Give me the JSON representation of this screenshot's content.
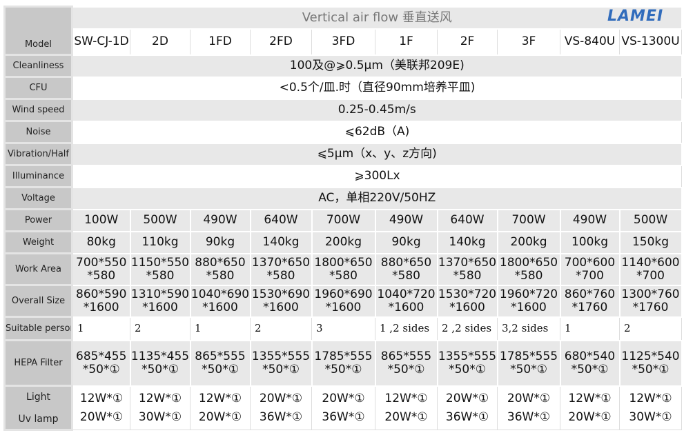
{
  "title": "Vertical air flow 垂直送风",
  "watermark": "LAMEI",
  "model_label": "Model",
  "models": [
    "SW-CJ-1D",
    "2D",
    "1FD",
    "2FD",
    "3FD",
    "1F",
    "2F",
    "3F",
    "VS-840U",
    "VS-1300U"
  ],
  "common": [
    {
      "label": "Cleanliness",
      "value": "100及@⩾0.5μm（美联邦209E)"
    },
    {
      "label": "CFU",
      "value": "<0.5个/皿.时（直径90mm培养平皿)"
    },
    {
      "label": "Wind speed",
      "value": "0.25-0.45m/s"
    },
    {
      "label": "Noise",
      "value": "⩽62dB（A)"
    },
    {
      "label": "Vibration/Half",
      "value": "⩽5μm（x、y、z方向)"
    },
    {
      "label": "Illuminance",
      "value": "⩾300Lx"
    },
    {
      "label": "Voltage",
      "value": "AC，单相220V/50HZ"
    }
  ],
  "power": {
    "label": "Power",
    "values": [
      "100W",
      "500W",
      "490W",
      "640W",
      "700W",
      "490W",
      "640W",
      "700W",
      "490W",
      "500W"
    ]
  },
  "weight": {
    "label": "Weight",
    "values": [
      "80kg",
      "110kg",
      "90kg",
      "140kg",
      "200kg",
      "90kg",
      "140kg",
      "200kg",
      "100kg",
      "150kg"
    ]
  },
  "work_area": {
    "label": "Work Area",
    "values": [
      [
        "700*550",
        "*580"
      ],
      [
        "1150*550",
        "*580"
      ],
      [
        "880*650",
        "*580"
      ],
      [
        "1370*650",
        "*580"
      ],
      [
        "1800*650",
        "*580"
      ],
      [
        "880*650",
        "*580"
      ],
      [
        "1370*650",
        "*580"
      ],
      [
        "1800*650",
        "*580"
      ],
      [
        "700*600",
        "*700"
      ],
      [
        "1140*600",
        "*700"
      ]
    ]
  },
  "overall_size": {
    "label": "Overall Size",
    "values": [
      [
        "860*590",
        "*1600"
      ],
      [
        "1310*590",
        "*1600"
      ],
      [
        "1040*690",
        "*1600"
      ],
      [
        "1530*690",
        "*1600"
      ],
      [
        "1960*690",
        "*1600"
      ],
      [
        "1040*720",
        "*1600"
      ],
      [
        "1530*720",
        "*1600"
      ],
      [
        "1960*720",
        "*1600"
      ],
      [
        "860*760",
        "*1760"
      ],
      [
        "1300*760",
        "*1760"
      ]
    ]
  },
  "suitable_person": {
    "label": "Suitable person",
    "values": [
      "1",
      "2",
      "1",
      "2",
      "3",
      "1 ,2 sides",
      "2 ,2 sides",
      "3,2 sides",
      "1",
      "2"
    ]
  },
  "hepa": {
    "label": "HEPA Filter",
    "values": [
      [
        "685*455",
        "*50*①"
      ],
      [
        "1135*455",
        "*50*①"
      ],
      [
        "865*555",
        "*50*①"
      ],
      [
        "1355*555",
        "*50*①"
      ],
      [
        "1785*555",
        "*50*①"
      ],
      [
        "865*555",
        "*50*①"
      ],
      [
        "1355*555",
        "*50*①"
      ],
      [
        "1785*555",
        "*50*①"
      ],
      [
        "680*540",
        "*50*①"
      ],
      [
        "1125*540",
        "*50*①"
      ]
    ]
  },
  "lamp": {
    "label_light": "Light",
    "label_uv": "Uv lamp",
    "values": [
      [
        "12W*①",
        "20W*①"
      ],
      [
        "12W*①",
        "30W*①"
      ],
      [
        "12W*①",
        "20W*①"
      ],
      [
        "20W*①",
        "36W*①"
      ],
      [
        "20W*①",
        "36W*①"
      ],
      [
        "12W*①",
        "20W*①"
      ],
      [
        "20W*①",
        "36W*①"
      ],
      [
        "20W*①",
        "36W*①"
      ],
      [
        "12W*①",
        "20W*①"
      ],
      [
        "12W*①",
        "30W*①"
      ]
    ]
  }
}
